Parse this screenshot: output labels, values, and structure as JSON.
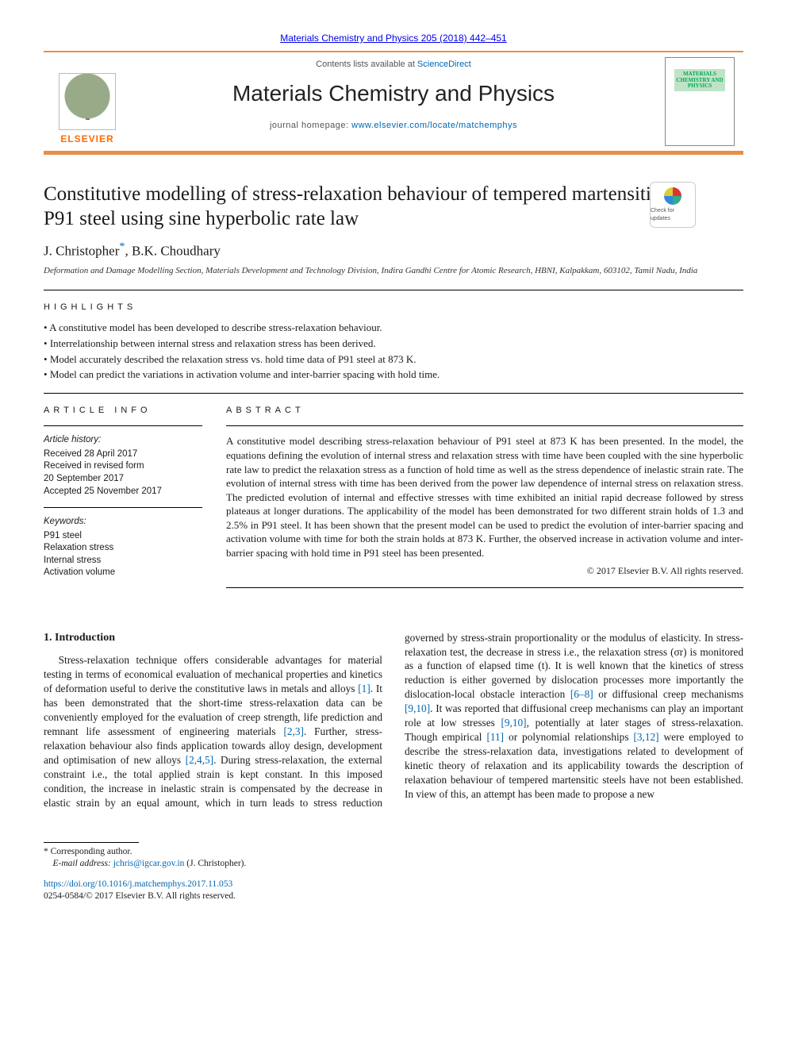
{
  "banner": {
    "citation": "Materials Chemistry and Physics 205 (2018) 442–451",
    "contents_prefix": "Contents lists available at ",
    "contents_link": "ScienceDirect",
    "journal_name": "Materials Chemistry and Physics",
    "homepage_prefix": "journal homepage: ",
    "homepage_url": "www.elsevier.com/locate/matchemphys",
    "publisher_name": "ELSEVIER",
    "cover_caption": "MATERIALS CHEMISTRY AND PHYSICS"
  },
  "check_updates_label": "Check for updates",
  "title": "Constitutive modelling of stress-relaxation behaviour of tempered martensitic P91 steel using sine hyperbolic rate law",
  "authors_html_parts": {
    "a1": "J. Christopher",
    "corr_mark": "*",
    "sep": ", ",
    "a2": "B.K. Choudhary"
  },
  "affiliation": "Deformation and Damage Modelling Section, Materials Development and Technology Division, Indira Gandhi Centre for Atomic Research, HBNI, Kalpakkam, 603102, Tamil Nadu, India",
  "highlights_head": "HIGHLIGHTS",
  "highlights": [
    "A constitutive model has been developed to describe stress-relaxation behaviour.",
    "Interrelationship between internal stress and relaxation stress has been derived.",
    "Model accurately described the relaxation stress vs. hold time data of P91 steel at 873 K.",
    "Model can predict the variations in activation volume and inter-barrier spacing with hold time."
  ],
  "article_info": {
    "head": "ARTICLE INFO",
    "history_title": "Article history:",
    "history": [
      "Received 28 April 2017",
      "Received in revised form",
      "20 September 2017",
      "Accepted 25 November 2017"
    ],
    "keywords_title": "Keywords:",
    "keywords": [
      "P91 steel",
      "Relaxation stress",
      "Internal stress",
      "Activation volume"
    ]
  },
  "abstract": {
    "head": "ABSTRACT",
    "text": "A constitutive model describing stress-relaxation behaviour of P91 steel at 873 K has been presented. In the model, the equations defining the evolution of internal stress and relaxation stress with time have been coupled with the sine hyperbolic rate law to predict the relaxation stress as a function of hold time as well as the stress dependence of inelastic strain rate. The evolution of internal stress with time has been derived from the power law dependence of internal stress on relaxation stress. The predicted evolution of internal and effective stresses with time exhibited an initial rapid decrease followed by stress plateaus at longer durations. The applicability of the model has been demonstrated for two different strain holds of 1.3 and 2.5% in P91 steel. It has been shown that the present model can be used to predict the evolution of inter-barrier spacing and activation volume with time for both the strain holds at 873 K. Further, the observed increase in activation volume and inter-barrier spacing with hold time in P91 steel has been presented.",
    "copyright": "© 2017 Elsevier B.V. All rights reserved."
  },
  "intro": {
    "heading": "1.  Introduction",
    "p1_a": "Stress-relaxation technique offers considerable advantages for material testing in terms of economical evaluation of mechanical properties and kinetics of deformation useful to derive the constitutive laws in metals and alloys ",
    "r1": "[1]",
    "p1_b": ". It has been demonstrated that the short-time stress-relaxation data can be conveniently employed for the evaluation of creep strength, life prediction and remnant life assessment of engineering materials ",
    "r23": "[2,3]",
    "p1_c": ". Further, stress-relaxation behaviour also finds application towards alloy design, development and optimisation of new alloys ",
    "r245": "[2,4,5]",
    "p1_d": ". During stress-relaxation, the external constraint i.e., the total applied strain is kept constant. In this imposed condition, the increase in ",
    "p1_e": "inelastic strain is compensated by the decrease in elastic strain by an equal amount, which in turn leads to stress reduction governed by stress-strain proportionality or the modulus of elasticity. In stress-relaxation test, the decrease in stress i.e., the relaxation stress (σr) is monitored as a function of elapsed time (t). It is well known that the kinetics of stress reduction is either governed by dislocation processes more importantly the dislocation-local obstacle interaction ",
    "r68": "[6–8]",
    "p1_f": " or diffusional creep mechanisms ",
    "r910a": "[9,10]",
    "p1_g": ". It was reported that diffusional creep mechanisms can play an important role at low stresses ",
    "r910b": "[9,10]",
    "p1_h": ", potentially at later stages of stress-relaxation. Though empirical ",
    "r11": "[11]",
    "p1_i": " or polynomial relationships ",
    "r312": "[3,12]",
    "p1_j": " were employed to describe the stress-relaxation data, investigations related to development of kinetic theory of relaxation and its applicability towards the description of relaxation behaviour of tempered martensitic steels have not been established. In view of this, an attempt has been made to propose a new"
  },
  "footnote": {
    "corr": "* Corresponding author.",
    "email_label": "E-mail address: ",
    "email": "jchris@igcar.gov.in",
    "email_tail": " (J. Christopher)."
  },
  "doi": {
    "url": "https://doi.org/10.1016/j.matchemphys.2017.11.053",
    "line2": "0254-0584/© 2017 Elsevier B.V. All rights reserved."
  },
  "colors": {
    "link": "#0066b3",
    "accent": "#e98f44"
  }
}
